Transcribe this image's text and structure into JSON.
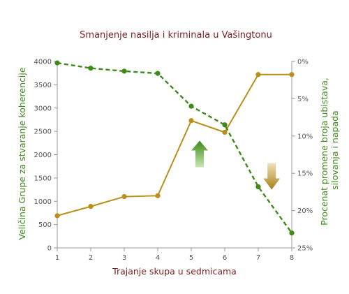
{
  "chart_data": {
    "type": "line",
    "title": "Smanjenje nasilja i kriminala u Vašingtonu",
    "xlabel": "Trajanje skupa u sedmicama",
    "ylabel_left": "Veličina Grupe za stvaranje koherencije",
    "ylabel_right_lines": [
      "Procenat promene broja ubistava,",
      "silovanja i napada"
    ],
    "x": [
      1,
      2,
      3,
      4,
      5,
      6,
      7,
      8
    ],
    "x_tick_labels": [
      "1",
      "2",
      "3",
      "4",
      "5",
      "6",
      "7",
      "8"
    ],
    "y_left_lim": [
      0,
      4000
    ],
    "y_left_tick_labels": [
      "0",
      "500",
      "1000",
      "1500",
      "2000",
      "2500",
      "3000",
      "3500",
      "4000"
    ],
    "y_right_lim": [
      0,
      25
    ],
    "y_right_inverted": true,
    "y_right_tick_labels": [
      "0%",
      "5%",
      "10%",
      "15%",
      "20%",
      "25%"
    ],
    "grid": false,
    "legend": "none",
    "series": [
      {
        "axis": "left",
        "color": "#b8901a",
        "style": "solid",
        "values": [
          690,
          890,
          1100,
          1120,
          2730,
          2480,
          3720,
          3720
        ]
      },
      {
        "axis": "right",
        "color": "#3f8a1a",
        "style": "dashed",
        "values": [
          0.2,
          0.9,
          1.3,
          1.6,
          6.0,
          8.5,
          16.8,
          23.0
        ]
      }
    ],
    "annotations": [
      {
        "icon": "up-arrow-icon",
        "color": "#3f8a1a",
        "x": 5.25,
        "y_left": 2000
      },
      {
        "icon": "down-arrow-icon",
        "color": "#b8901a",
        "x": 7.4,
        "y_left": 1550
      }
    ]
  }
}
